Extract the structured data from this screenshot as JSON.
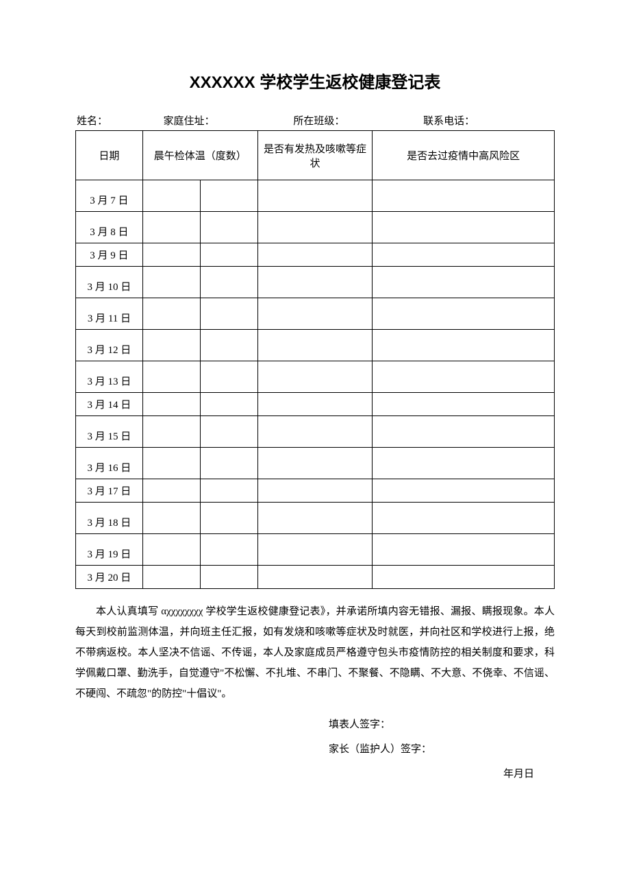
{
  "title": "XXXXXX 学校学生返校健康登记表",
  "info": {
    "name_label": "姓名：",
    "address_label": "家庭住址：",
    "class_label": "所在班级：",
    "phone_label": "联系电话："
  },
  "table": {
    "headers": {
      "date": "日期",
      "temp": "晨午检体温（度数）",
      "symptom": "是否有发热及咳嗽等症状",
      "risk": "是否去过疫情中高风险区"
    },
    "rows": [
      {
        "date": "3 月 7 日",
        "cls": "row-tall"
      },
      {
        "date": "3 月 8 日",
        "cls": "row-tall"
      },
      {
        "date": "3 月 9 日",
        "cls": "row-short"
      },
      {
        "date": "3 月 10 日",
        "cls": "row-tall"
      },
      {
        "date": "3 月 11 日",
        "cls": "row-tall"
      },
      {
        "date": "3 月 12 日",
        "cls": "row-tall"
      },
      {
        "date": "3 月 13 日",
        "cls": "row-tall"
      },
      {
        "date": "3 月 14 日",
        "cls": "row-short"
      },
      {
        "date": "3 月 15 日",
        "cls": "row-tall"
      },
      {
        "date": "3 月 16 日",
        "cls": "row-tall"
      },
      {
        "date": "3 月 17 日",
        "cls": "row-short"
      },
      {
        "date": "3 月 18 日",
        "cls": "row-tall"
      },
      {
        "date": "3 月 19 日",
        "cls": "row-tall"
      },
      {
        "date": "3 月 20 日",
        "cls": "row-short"
      }
    ]
  },
  "declaration": "本人认真填写 αχχχχχχχχ 学校学生返校健康登记表》，并承诺所填内容无错报、漏报、瞒报现象。本人每天到校前监测体温，并向班主任汇报，如有发烧和咳嗽等症状及时就医，并向社区和学校进行上报，绝不带病返校。本人坚决不信谣、不传谣，本人及家庭成员严格遵守包头市疫情防控的相关制度和要求，科学佩戴口罩、勤洗手，自觉遵守\"不松懈、不扎堆、不串门、不聚餐、不隐瞒、不大意、不侥幸、不信谣、不硬闯、不疏忽\"的防控\"十倡议\"。",
  "signatures": {
    "filler": "填表人签字：",
    "guardian": "家长（监护人）签字：",
    "date": "年月日"
  }
}
